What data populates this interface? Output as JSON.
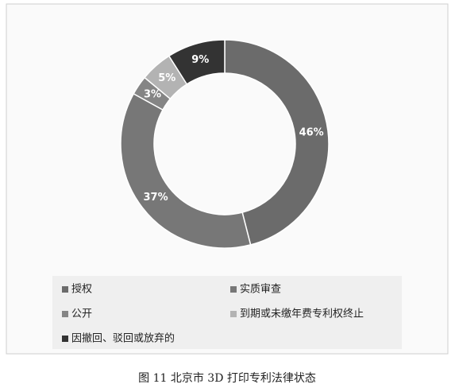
{
  "chart_data": {
    "type": "pie",
    "categories": [
      "授权",
      "实质审查",
      "公开",
      "到期或未缴年费专利权终止",
      "因撤回、驳回或放弃的"
    ],
    "values": [
      46,
      37,
      3,
      5,
      9
    ],
    "value_labels": [
      "46%",
      "37%",
      "3%",
      "5%",
      "9%"
    ],
    "colors": [
      "#6b6b6b",
      "#777777",
      "#858585",
      "#b3b3b3",
      "#333333"
    ],
    "donut": true,
    "caption": "图 11   北京市 3D 打印专利法律状态"
  }
}
